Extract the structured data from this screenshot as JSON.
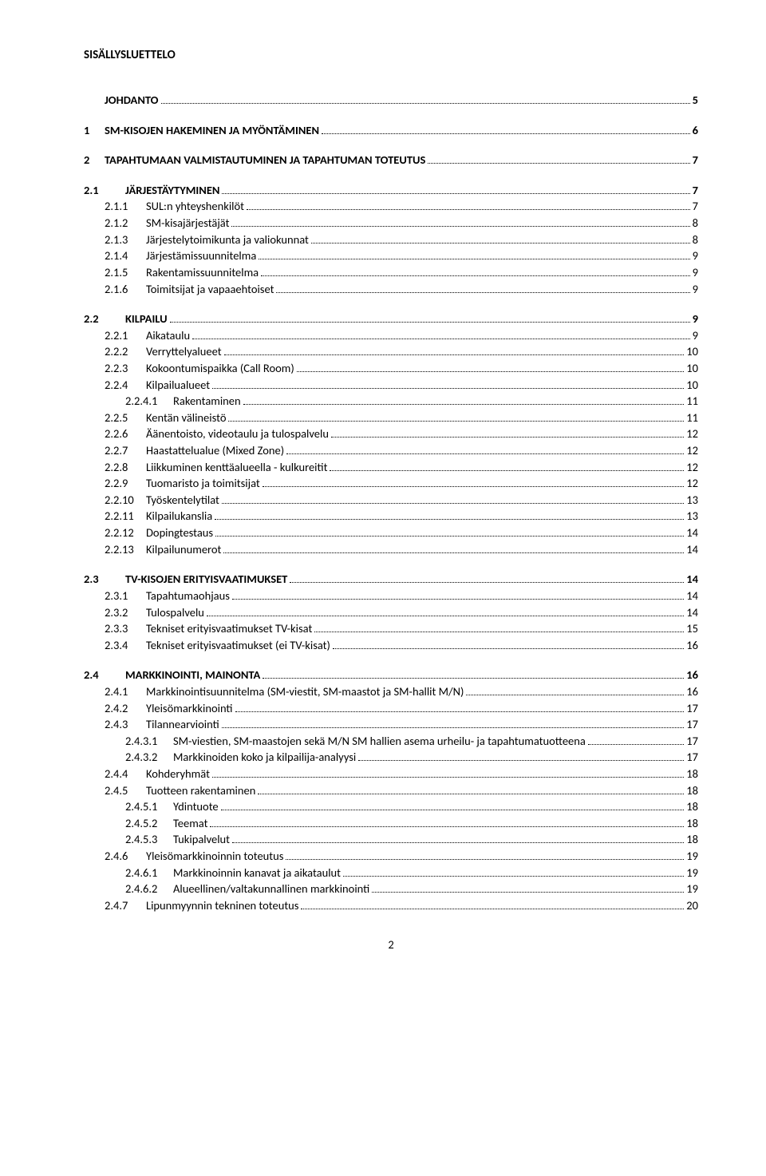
{
  "title": "SISÄLLYSLUETTELO",
  "footer_page": "2",
  "text_color": "#000000",
  "bg_color": "#ffffff",
  "font_family": "Calibri, Arial, sans-serif",
  "base_fontsize": 14.5,
  "title_fontsize": 15,
  "toc": [
    {
      "level": "top",
      "num": "",
      "label": "JOHDANTO",
      "page": "5",
      "mt": 0
    },
    {
      "level": "top",
      "num": "1",
      "label": "SM-KISOJEN HAKEMINEN JA MYÖNTÄMINEN",
      "page": "6"
    },
    {
      "level": "top",
      "num": "2",
      "label": "TAPAHTUMAAN VALMISTAUTUMINEN JA TAPAHTUMAN TOTEUTUS",
      "page": "7"
    },
    {
      "level": "section",
      "num": "2.1",
      "label": "JÄRJESTÄYTYMINEN",
      "page": "7"
    },
    {
      "level": "sub",
      "num": "2.1.1",
      "label": "SUL:n yhteyshenkilöt",
      "page": "7"
    },
    {
      "level": "sub",
      "num": "2.1.2",
      "label": "SM-kisajärjestäjät",
      "page": "8"
    },
    {
      "level": "sub",
      "num": "2.1.3",
      "label": "Järjestelytoimikunta ja valiokunnat",
      "page": "8"
    },
    {
      "level": "sub",
      "num": "2.1.4",
      "label": "Järjestämissuunnitelma",
      "page": "9"
    },
    {
      "level": "sub",
      "num": "2.1.5",
      "label": "Rakentamissuunnitelma",
      "page": "9"
    },
    {
      "level": "sub",
      "num": "2.1.6",
      "label": "Toimitsijat ja vapaaehtoiset",
      "page": "9"
    },
    {
      "level": "section",
      "num": "2.2",
      "label": "KILPAILU",
      "page": "9"
    },
    {
      "level": "sub",
      "num": "2.2.1",
      "label": "Aikataulu",
      "page": "9"
    },
    {
      "level": "sub",
      "num": "2.2.2",
      "label": "Verryttelyalueet",
      "page": "10"
    },
    {
      "level": "sub",
      "num": "2.2.3",
      "label": "Kokoontumispaikka (Call Room)",
      "page": "10"
    },
    {
      "level": "sub",
      "num": "2.2.4",
      "label": "Kilpailualueet",
      "page": "10"
    },
    {
      "level": "subsub",
      "num": "2.2.4.1",
      "label": "Rakentaminen",
      "page": "11"
    },
    {
      "level": "sub",
      "num": "2.2.5",
      "label": "Kentän välineistö",
      "page": "11"
    },
    {
      "level": "sub",
      "num": "2.2.6",
      "label": "Äänentoisto, videotaulu ja tulospalvelu",
      "page": "12"
    },
    {
      "level": "sub",
      "num": "2.2.7",
      "label": "Haastattelualue (Mixed Zone)",
      "page": "12"
    },
    {
      "level": "sub",
      "num": "2.2.8",
      "label": "Liikkuminen kenttäalueella - kulkureitit",
      "page": "12"
    },
    {
      "level": "sub",
      "num": "2.2.9",
      "label": "Tuomaristo ja toimitsijat",
      "page": "12"
    },
    {
      "level": "sub",
      "num": "2.2.10",
      "label": "Työskentelytilat",
      "page": "13"
    },
    {
      "level": "sub",
      "num": "2.2.11",
      "label": "Kilpailukanslia",
      "page": "13"
    },
    {
      "level": "sub",
      "num": "2.2.12",
      "label": "Dopingtestaus",
      "page": "14"
    },
    {
      "level": "sub",
      "num": "2.2.13",
      "label": "Kilpailunumerot",
      "page": "14"
    },
    {
      "level": "section",
      "num": "2.3",
      "label": "TV-KISOJEN ERITYISVAATIMUKSET",
      "page": "14"
    },
    {
      "level": "sub",
      "num": "2.3.1",
      "label": "Tapahtumaohjaus",
      "page": "14"
    },
    {
      "level": "sub",
      "num": "2.3.2",
      "label": "Tulospalvelu",
      "page": "14"
    },
    {
      "level": "sub",
      "num": "2.3.3",
      "label": "Tekniset erityisvaatimukset TV-kisat",
      "page": "15"
    },
    {
      "level": "sub",
      "num": "2.3.4",
      "label": "Tekniset erityisvaatimukset (ei TV-kisat)",
      "page": "16"
    },
    {
      "level": "section",
      "num": "2.4",
      "label": "MARKKINOINTI, MAINONTA",
      "page": "16"
    },
    {
      "level": "sub",
      "num": "2.4.1",
      "label": "Markkinointisuunnitelma (SM-viestit, SM-maastot ja SM-hallit M/N)",
      "page": "16"
    },
    {
      "level": "sub",
      "num": "2.4.2",
      "label": "Yleisömarkkinointi",
      "page": "17"
    },
    {
      "level": "sub",
      "num": "2.4.3",
      "label": "Tilannearviointi",
      "page": "17"
    },
    {
      "level": "subsub",
      "num": "2.4.3.1",
      "label": "SM-viestien, SM-maastojen sekä M/N SM hallien asema urheilu- ja tapahtumatuotteena",
      "page": "17"
    },
    {
      "level": "subsub",
      "num": "2.4.3.2",
      "label": "Markkinoiden koko ja kilpailija-analyysi",
      "page": "17"
    },
    {
      "level": "sub",
      "num": "2.4.4",
      "label": "Kohderyhmät",
      "page": "18"
    },
    {
      "level": "sub",
      "num": "2.4.5",
      "label": "Tuotteen rakentaminen",
      "page": "18"
    },
    {
      "level": "subsub",
      "num": "2.4.5.1",
      "label": "Ydintuote",
      "page": "18"
    },
    {
      "level": "subsub",
      "num": "2.4.5.2",
      "label": "Teemat",
      "page": "18"
    },
    {
      "level": "subsub",
      "num": "2.4.5.3",
      "label": "Tukipalvelut",
      "page": "18"
    },
    {
      "level": "sub",
      "num": "2.4.6",
      "label": "Yleisömarkkinoinnin toteutus",
      "page": "19"
    },
    {
      "level": "subsub",
      "num": "2.4.6.1",
      "label": "Markkinoinnin kanavat ja aikataulut",
      "page": "19"
    },
    {
      "level": "subsub",
      "num": "2.4.6.2",
      "label": "Alueellinen/valtakunnallinen markkinointi",
      "page": "19"
    },
    {
      "level": "sub",
      "num": "2.4.7",
      "label": "Lipunmyynnin tekninen toteutus",
      "page": "20"
    }
  ]
}
